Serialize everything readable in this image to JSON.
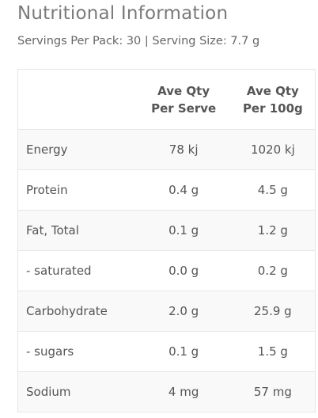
{
  "title": "Nutritional Information",
  "servings_line": "Servings Per Pack: 30 | Serving Size: 7.7 g",
  "table": {
    "headers": {
      "name": "",
      "per_serve_line1": "Ave Qty",
      "per_serve_line2": "Per Serve",
      "per_100_line1": "Ave Qty",
      "per_100_line2": "Per 100g"
    },
    "rows": [
      {
        "name": "Energy",
        "per_serve": "78 kj",
        "per_100": "1020 kj"
      },
      {
        "name": "Protein",
        "per_serve": "0.4 g",
        "per_100": "4.5 g"
      },
      {
        "name": "Fat, Total",
        "per_serve": "0.1 g",
        "per_100": "1.2 g"
      },
      {
        "name": "- saturated",
        "per_serve": "0.0 g",
        "per_100": "0.2 g"
      },
      {
        "name": "Carbohydrate",
        "per_serve": "2.0 g",
        "per_100": "25.9 g"
      },
      {
        "name": "- sugars",
        "per_serve": "0.1 g",
        "per_100": "1.5 g"
      },
      {
        "name": "Sodium",
        "per_serve": "4 mg",
        "per_100": "57 mg"
      }
    ]
  },
  "colors": {
    "text": "#555555",
    "title": "#7a7a7a",
    "border": "#e6e6e6",
    "alt_row": "#f9f9f9"
  }
}
